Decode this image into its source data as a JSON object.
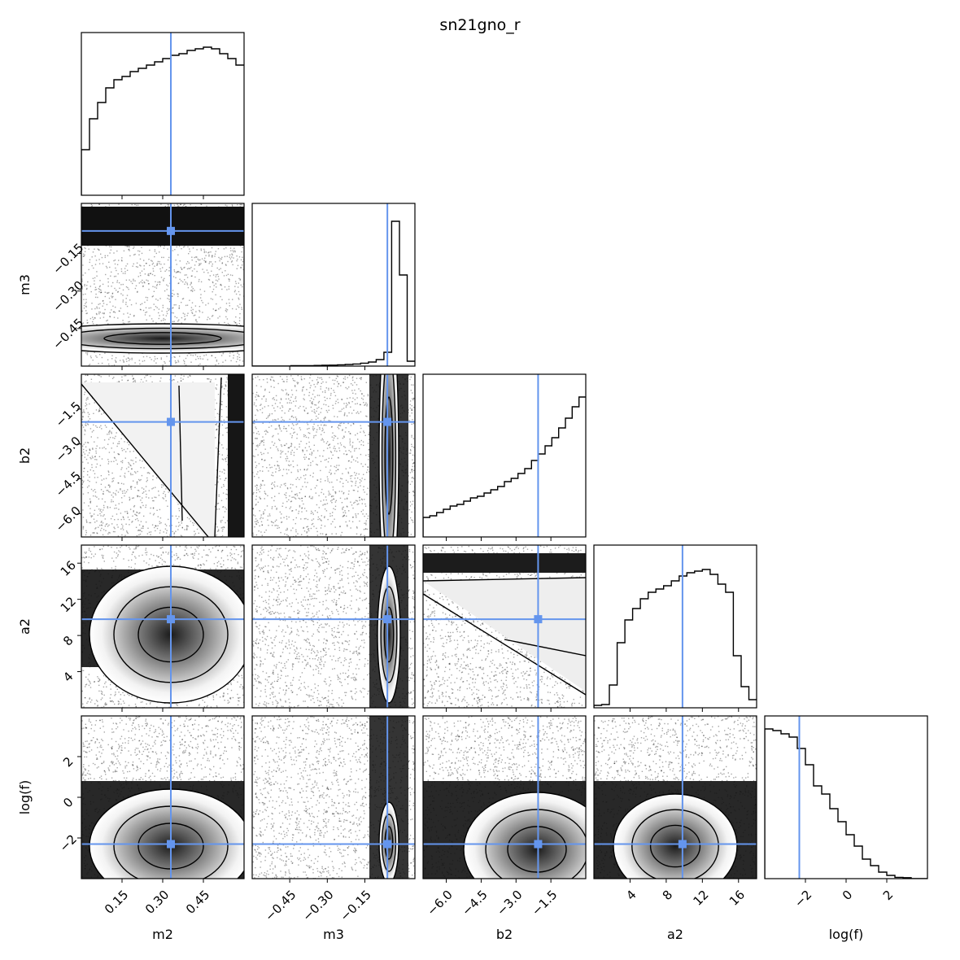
{
  "figure": {
    "title": "sn21gno_r",
    "truth_color": "#6495ed"
  },
  "chart_data": {
    "type": "corner",
    "title": "sn21gno_r",
    "parameters": [
      {
        "name": "m2",
        "label": "m2",
        "range": [
          0.0,
          0.6
        ],
        "ticks": [
          0.15,
          0.3,
          0.45
        ],
        "tick_labels": [
          "0.15",
          "0.30",
          "0.45"
        ],
        "truth": 0.33
      },
      {
        "name": "m3",
        "label": "m3",
        "range": [
          -0.6,
          0.05
        ],
        "ticks": [
          -0.45,
          -0.3,
          -0.15
        ],
        "tick_labels": [
          "−0.45",
          "−0.30",
          "−0.15"
        ],
        "truth": -0.06
      },
      {
        "name": "b2",
        "label": "b2",
        "range": [
          -7.0,
          0.0
        ],
        "ticks": [
          -6.0,
          -4.5,
          -3.0,
          -1.5
        ],
        "tick_labels": [
          "−6.0",
          "−4.5",
          "−3.0",
          "−1.5"
        ],
        "truth": -2.05
      },
      {
        "name": "a2",
        "label": "a2",
        "range": [
          0.0,
          18.0
        ],
        "ticks": [
          4,
          8,
          12,
          16
        ],
        "tick_labels": [
          "4",
          "8",
          "12",
          "16"
        ],
        "truth": 9.8
      },
      {
        "name": "log(f)",
        "label": "log(f)",
        "range": [
          -4.0,
          4.0
        ],
        "ticks": [
          -2,
          0,
          2
        ],
        "tick_labels": [
          "−2",
          "0",
          "2"
        ],
        "truth": -2.3
      }
    ],
    "histograms": {
      "m2": [
        0.28,
        0.47,
        0.57,
        0.66,
        0.71,
        0.73,
        0.76,
        0.78,
        0.8,
        0.82,
        0.84,
        0.86,
        0.87,
        0.89,
        0.9,
        0.91,
        0.9,
        0.87,
        0.84,
        0.8
      ],
      "m3": [
        0.0,
        0.0,
        0.0,
        0.0,
        0.0,
        0.003,
        0.003,
        0.003,
        0.004,
        0.005,
        0.006,
        0.008,
        0.01,
        0.013,
        0.018,
        0.025,
        0.04,
        0.085,
        0.89,
        0.56,
        0.03
      ],
      "b2": [
        0.12,
        0.13,
        0.15,
        0.17,
        0.19,
        0.2,
        0.22,
        0.24,
        0.25,
        0.27,
        0.29,
        0.31,
        0.34,
        0.36,
        0.39,
        0.42,
        0.47,
        0.51,
        0.56,
        0.61,
        0.67,
        0.73,
        0.8,
        0.86
      ],
      "a2": [
        0.015,
        0.02,
        0.14,
        0.4,
        0.54,
        0.61,
        0.67,
        0.71,
        0.73,
        0.75,
        0.78,
        0.81,
        0.83,
        0.84,
        0.85,
        0.82,
        0.76,
        0.71,
        0.32,
        0.13,
        0.05
      ],
      "log(f)": [
        0.92,
        0.91,
        0.89,
        0.87,
        0.8,
        0.7,
        0.57,
        0.52,
        0.43,
        0.35,
        0.27,
        0.2,
        0.12,
        0.08,
        0.04,
        0.02,
        0.008,
        0.006,
        0.0,
        0.0
      ]
    },
    "truth_color": "#6495ed"
  }
}
